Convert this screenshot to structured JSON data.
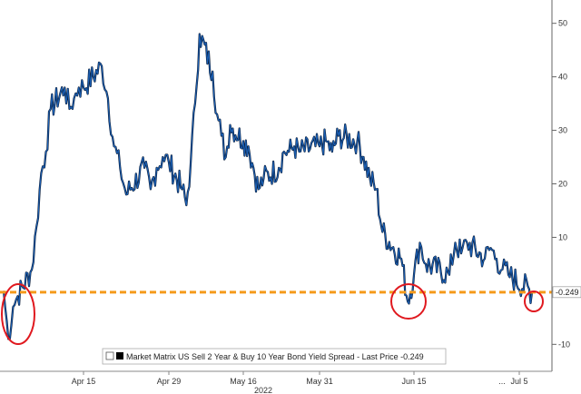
{
  "chart_data": {
    "type": "line",
    "year_label": "2022",
    "x_tick_labels": [
      "Apr 15",
      "Apr 29",
      "May 16",
      "May 31",
      "Jun 15",
      "...",
      "Jul 5"
    ],
    "y_ticks": [
      50,
      40,
      30,
      20,
      10,
      0,
      -10
    ],
    "ylim": [
      -13,
      53
    ],
    "grid": false,
    "legend": {
      "position": "bottom-center",
      "text": "Market Matrix US Sell 2 Year & Buy 10 Year Bond Yield Spread - Last Price -0.249"
    },
    "last_price": {
      "value": -0.249,
      "label": "-0.249"
    },
    "reference_line": {
      "value": -0.249,
      "color": "#f59a1b",
      "style": "dashed"
    },
    "annotations": [
      {
        "type": "circle",
        "near": "late March low",
        "color": "#e0191f"
      },
      {
        "type": "circle",
        "near": "mid June low",
        "color": "#e0191f"
      },
      {
        "type": "circle",
        "near": "July 5 latest value",
        "color": "#e0191f"
      }
    ],
    "series": [
      {
        "color": "#1a5fb4",
        "points": [
          {
            "x": "Mar 29",
            "y": 0
          },
          {
            "x": "Mar 30",
            "y": -9
          },
          {
            "x": "Mar 31",
            "y": -3
          },
          {
            "x": "Apr 1",
            "y": -1
          },
          {
            "x": "Apr 4",
            "y": 4
          },
          {
            "x": "Apr 5",
            "y": 12
          },
          {
            "x": "Apr 6",
            "y": 22
          },
          {
            "x": "Apr 7",
            "y": 26
          },
          {
            "x": "Apr 8",
            "y": 34
          },
          {
            "x": "Apr 11",
            "y": 38
          },
          {
            "x": "Apr 12",
            "y": 34
          },
          {
            "x": "Apr 13",
            "y": 36
          },
          {
            "x": "Apr 14",
            "y": 38
          },
          {
            "x": "Apr 15",
            "y": 38
          },
          {
            "x": "Apr 18",
            "y": 42
          },
          {
            "x": "Apr 19",
            "y": 36
          },
          {
            "x": "Apr 20",
            "y": 27
          },
          {
            "x": "Apr 21",
            "y": 23
          },
          {
            "x": "Apr 22",
            "y": 18
          },
          {
            "x": "Apr 25",
            "y": 23
          },
          {
            "x": "Apr 26",
            "y": 19
          },
          {
            "x": "Apr 27",
            "y": 23
          },
          {
            "x": "Apr 28",
            "y": 25
          },
          {
            "x": "Apr 29",
            "y": 24
          },
          {
            "x": "May 2",
            "y": 19
          },
          {
            "x": "May 3",
            "y": 16
          },
          {
            "x": "May 4",
            "y": 24
          },
          {
            "x": "May 5",
            "y": 35
          },
          {
            "x": "May 6",
            "y": 48
          },
          {
            "x": "May 9",
            "y": 41
          },
          {
            "x": "May 10",
            "y": 33
          },
          {
            "x": "May 11",
            "y": 29
          },
          {
            "x": "May 12",
            "y": 25
          },
          {
            "x": "May 13",
            "y": 31
          },
          {
            "x": "May 16",
            "y": 28
          },
          {
            "x": "May 17",
            "y": 27
          },
          {
            "x": "May 18",
            "y": 23
          },
          {
            "x": "May 19",
            "y": 19
          },
          {
            "x": "May 20",
            "y": 21
          },
          {
            "x": "May 23",
            "y": 23
          },
          {
            "x": "May 24",
            "y": 26
          },
          {
            "x": "May 25",
            "y": 26
          },
          {
            "x": "May 26",
            "y": 27
          },
          {
            "x": "May 27",
            "y": 26
          },
          {
            "x": "May 31",
            "y": 27
          },
          {
            "x": "Jun 1",
            "y": 28
          },
          {
            "x": "Jun 2",
            "y": 26
          },
          {
            "x": "Jun 3",
            "y": 29
          },
          {
            "x": "Jun 6",
            "y": 28
          },
          {
            "x": "Jun 7",
            "y": 25
          },
          {
            "x": "Jun 8",
            "y": 21
          },
          {
            "x": "Jun 9",
            "y": 19
          },
          {
            "x": "Jun 10",
            "y": 11
          },
          {
            "x": "Jun 13",
            "y": 6
          },
          {
            "x": "Jun 14",
            "y": -2
          },
          {
            "x": "Jun 15",
            "y": 3
          },
          {
            "x": "Jun 16",
            "y": 9
          },
          {
            "x": "Jun 17",
            "y": 5
          },
          {
            "x": "Jun 21",
            "y": 3
          },
          {
            "x": "Jun 22",
            "y": 9
          },
          {
            "x": "Jun 23",
            "y": 7
          },
          {
            "x": "Jun 24",
            "y": 9
          },
          {
            "x": "Jun 27",
            "y": 6
          },
          {
            "x": "Jun 28",
            "y": 8
          },
          {
            "x": "Jun 29",
            "y": 6
          },
          {
            "x": "Jun 30",
            "y": 4
          },
          {
            "x": "Jul 1",
            "y": 3
          },
          {
            "x": "Jul 5",
            "y": -0.249
          }
        ]
      }
    ]
  }
}
